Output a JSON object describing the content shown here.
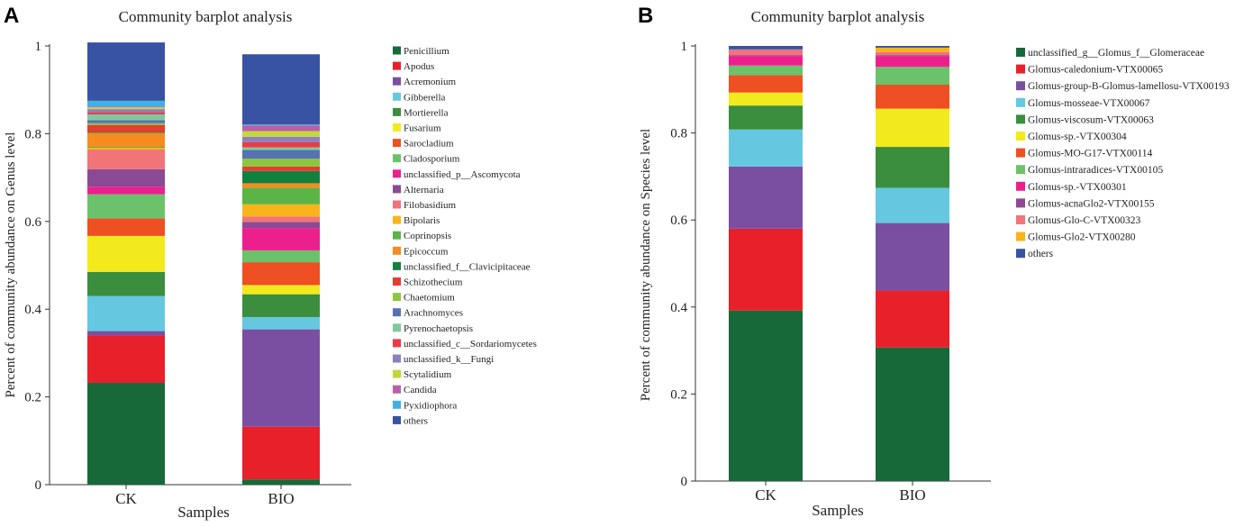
{
  "panels": [
    {
      "letter": "A",
      "chart_data": {
        "type": "bar",
        "stacked": true,
        "title": "Community barplot analysis",
        "xlabel": "Samples",
        "ylabel": "Percent of community abundance on Genus level",
        "ylim": [
          0,
          1
        ],
        "yticks": [
          "0",
          "0.2",
          "0.4",
          "0.6",
          "0.8",
          "1"
        ],
        "categories": [
          "CK",
          "BIO"
        ],
        "series": [
          {
            "name": "Penicillium",
            "color": "#17693A",
            "values": [
              0.232,
              0.012
            ]
          },
          {
            "name": "Apodus",
            "color": "#E8202A",
            "values": [
              0.108,
              0.12
            ]
          },
          {
            "name": "Acremonium",
            "color": "#7A4FA2",
            "values": [
              0.01,
              0.222
            ]
          },
          {
            "name": "Gibberella",
            "color": "#65C8E0",
            "values": [
              0.08,
              0.028
            ]
          },
          {
            "name": "Mortierella",
            "color": "#3A8E3E",
            "values": [
              0.055,
              0.052
            ]
          },
          {
            "name": "Fusarium",
            "color": "#F2EA1D",
            "values": [
              0.082,
              0.021
            ]
          },
          {
            "name": "Sarocladium",
            "color": "#EE4F23",
            "values": [
              0.04,
              0.052
            ]
          },
          {
            "name": "Cladosporium",
            "color": "#6CC26A",
            "values": [
              0.055,
              0.027
            ]
          },
          {
            "name": "unclassified_p__Ascomycota",
            "color": "#EC208D",
            "values": [
              0.017,
              0.051
            ]
          },
          {
            "name": "Alternaria",
            "color": "#8B4A93",
            "values": [
              0.04,
              0.014
            ]
          },
          {
            "name": "Filobasidium",
            "color": "#F07478",
            "values": [
              0.045,
              0.012
            ]
          },
          {
            "name": "Bipolaris",
            "color": "#F9B41B",
            "values": [
              0.004,
              0.028
            ]
          },
          {
            "name": "Coprinopsis",
            "color": "#5BB445",
            "values": [
              0.002,
              0.038
            ]
          },
          {
            "name": "Epicoccum",
            "color": "#F68B20",
            "values": [
              0.032,
              0.01
            ]
          },
          {
            "name": "unclassified_f__Clavicipitaceae",
            "color": "#128140",
            "values": [
              0.002,
              0.028
            ]
          },
          {
            "name": "Schizothecium",
            "color": "#E73C2E",
            "values": [
              0.016,
              0.01
            ]
          },
          {
            "name": "Chaetomium",
            "color": "#8DC63F",
            "values": [
              0.004,
              0.018
            ]
          },
          {
            "name": "Arachnomyces",
            "color": "#5572B4",
            "values": [
              0.007,
              0.02
            ]
          },
          {
            "name": "Pyrenochaetopsis",
            "color": "#80C99C",
            "values": [
              0.013,
              0.006
            ]
          },
          {
            "name": "unclassified_c__Sordariomycetes",
            "color": "#EC3B45",
            "values": [
              0.004,
              0.012
            ]
          },
          {
            "name": "unclassified_k__Fungi",
            "color": "#8D7FC0",
            "values": [
              0.008,
              0.012
            ]
          },
          {
            "name": "Scytalidium",
            "color": "#C5D73A",
            "values": [
              0.004,
              0.013
            ]
          },
          {
            "name": "Candida",
            "color": "#BB5EA8",
            "values": [
              0.002,
              0.013
            ]
          },
          {
            "name": "Pyxidiophora",
            "color": "#3FB1E4",
            "values": [
              0.013,
              0.002
            ]
          },
          {
            "name": "others",
            "color": "#3853A4",
            "values": [
              0.133,
              0.16
            ]
          }
        ]
      }
    },
    {
      "letter": "B",
      "chart_data": {
        "type": "bar",
        "stacked": true,
        "title": "Community barplot analysis",
        "xlabel": "Samples",
        "ylabel": "Percent of community abundance on Species level",
        "ylim": [
          0,
          1
        ],
        "yticks": [
          "0",
          "0.2",
          "0.4",
          "0.6",
          "0.8",
          "1"
        ],
        "categories": [
          "CK",
          "BIO"
        ],
        "series": [
          {
            "name": "unclassified_g__Glomus_f__Glomeraceae",
            "color": "#17693A",
            "values": [
              0.392,
              0.307
            ]
          },
          {
            "name": "Glomus-caledonium-VTX00065",
            "color": "#E8202A",
            "values": [
              0.188,
              0.131
            ]
          },
          {
            "name": "Glomus-group-B-Glomus-lamellosu-VTX00193",
            "color": "#7A4FA2",
            "values": [
              0.143,
              0.155
            ]
          },
          {
            "name": "Glomus-mosseae-VTX00067",
            "color": "#65C8E0",
            "values": [
              0.085,
              0.081
            ]
          },
          {
            "name": "Glomus-viscosum-VTX00063",
            "color": "#3A8E3E",
            "values": [
              0.055,
              0.094
            ]
          },
          {
            "name": "Glomus-sp.-VTX00304",
            "color": "#F2EA1D",
            "values": [
              0.03,
              0.088
            ]
          },
          {
            "name": "Glomus-MO-G17-VTX00114",
            "color": "#EE4F23",
            "values": [
              0.04,
              0.055
            ]
          },
          {
            "name": "Glomus-intraradices-VTX00105",
            "color": "#6CC26A",
            "values": [
              0.022,
              0.041
            ]
          },
          {
            "name": "Glomus-sp.-VTX00301",
            "color": "#EC208D",
            "values": [
              0.022,
              0.025
            ]
          },
          {
            "name": "Glomus-acnaGlo2-VTX00155",
            "color": "#8B4A93",
            "values": [
              0.002,
              0.002
            ]
          },
          {
            "name": "Glomus-Glo-C-VTX00323",
            "color": "#F07478",
            "values": [
              0.013,
              0.007
            ]
          },
          {
            "name": "Glomus-Glo2-VTX00280",
            "color": "#F9B41B",
            "values": [
              0.0,
              0.01
            ]
          },
          {
            "name": "others",
            "color": "#3853A4",
            "values": [
              0.008,
              0.004
            ]
          }
        ]
      }
    }
  ]
}
